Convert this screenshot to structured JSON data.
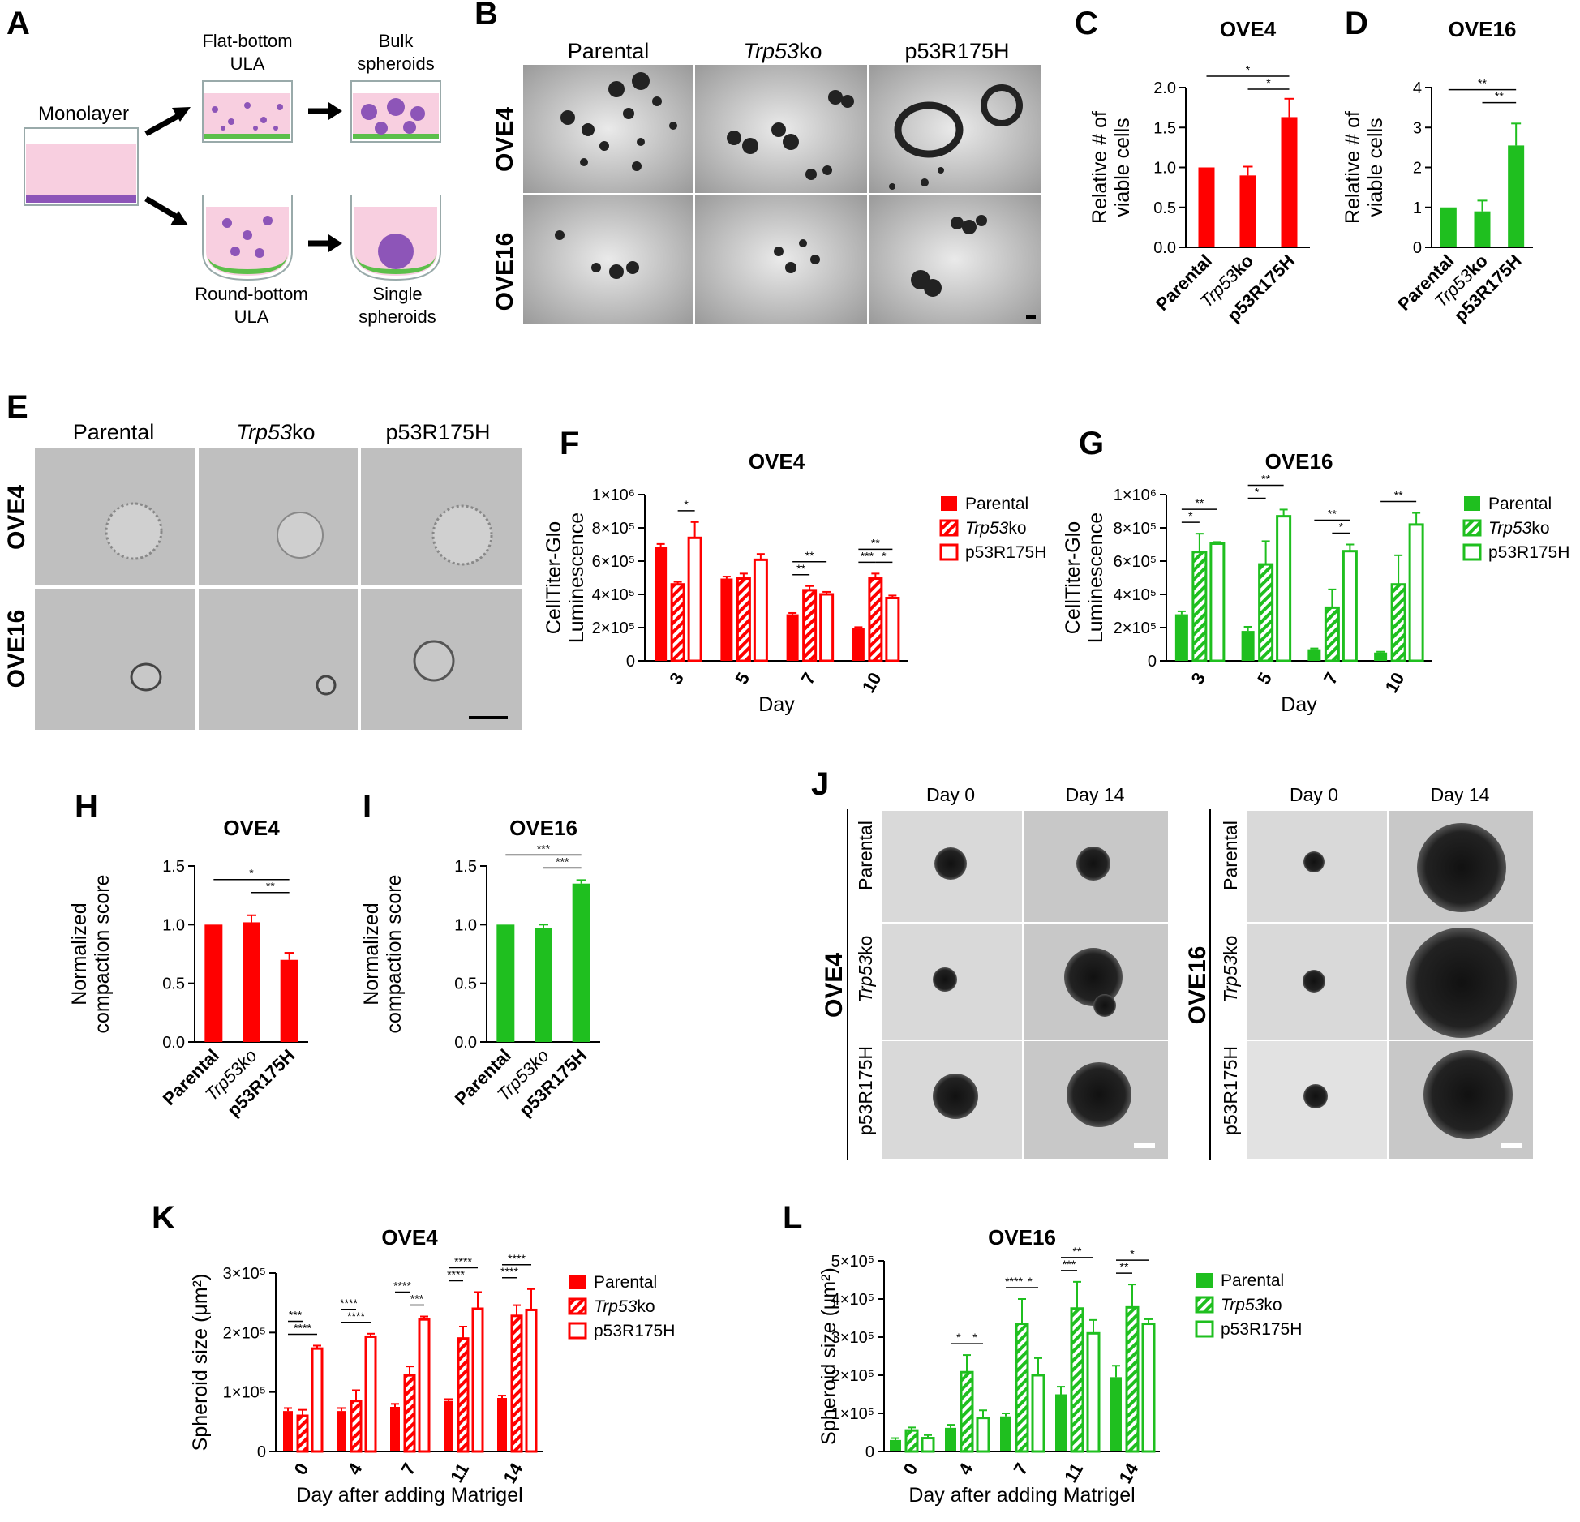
{
  "colors": {
    "red": "#ff0000",
    "green": "#1fbf1f",
    "pink": "#f8cfe0",
    "purple": "#8d55b8",
    "medium_green": "#5cbf4a"
  },
  "panelA": {
    "letter": "A",
    "monolayer": "Monolayer",
    "flat_line1": "Flat-bottom",
    "flat_line2": "ULA",
    "bulk_line1": "Bulk",
    "bulk_line2": "spheroids",
    "round_line1": "Round-bottom",
    "round_line2": "ULA",
    "single_line1": "Single",
    "single_line2": "spheroids"
  },
  "panelB": {
    "letter": "B",
    "cols": [
      "Parental",
      "Trp53",
      "ko",
      "p53R175H"
    ],
    "rows": [
      "OVE4",
      "OVE16"
    ]
  },
  "panelE": {
    "letter": "E",
    "cols": [
      "Parental",
      "Trp53",
      "ko",
      "p53R175H"
    ],
    "rows": [
      "OVE4",
      "OVE16"
    ]
  },
  "panelJ": {
    "letter": "J",
    "days": [
      "Day 0",
      "Day 14"
    ],
    "rows": [
      "Parental",
      "Trp53",
      "ko",
      "p53R175H"
    ],
    "groups": [
      "OVE4",
      "OVE16"
    ]
  },
  "chart_data": [
    {
      "id": "C",
      "type": "bar",
      "title": "OVE4",
      "ylabel": "Relative # of viable cells",
      "ylabel_lines": [
        "Relative # of",
        "viable cells"
      ],
      "categories": [
        "Parental",
        "Trp53ko",
        "p53R175H"
      ],
      "values": [
        1.0,
        0.9,
        1.63
      ],
      "errors": [
        0,
        0.11,
        0.23
      ],
      "ylim": [
        0,
        2.0
      ],
      "yticks": [
        "0.0",
        "0.5",
        "1.0",
        "1.5",
        "2.0"
      ],
      "color": "#ff0000",
      "significance": [
        "*",
        "*"
      ]
    },
    {
      "id": "D",
      "type": "bar",
      "title": "OVE16",
      "ylabel": "Relative # of viable cells",
      "ylabel_lines": [
        "Relative # of",
        "viable cells"
      ],
      "categories": [
        "Parental",
        "Trp53ko",
        "p53R175H"
      ],
      "values": [
        1.0,
        0.9,
        2.55
      ],
      "errors": [
        0,
        0.27,
        0.55
      ],
      "ylim": [
        0,
        4
      ],
      "yticks": [
        "0",
        "1",
        "2",
        "3",
        "4"
      ],
      "color": "#1fbf1f",
      "significance": [
        "**",
        "**"
      ]
    },
    {
      "id": "F",
      "type": "bar",
      "title": "OVE4",
      "xlabel": "Day",
      "ylabel": "CellTiter-Glo Luminescence",
      "ylabel_lines": [
        "CellTiter-Glo",
        "Luminescence"
      ],
      "categories": [
        "3",
        "5",
        "7",
        "10"
      ],
      "ylim": [
        0,
        1000000
      ],
      "yticks": [
        "0",
        "2×10⁵",
        "4×10⁵",
        "6×10⁵",
        "8×10⁵",
        "1×10⁶"
      ],
      "series": [
        {
          "name": "Parental",
          "values": [
            685000,
            495000,
            280000,
            195000
          ],
          "errors": [
            18000,
            12000,
            8000,
            8000
          ]
        },
        {
          "name": "Trp53ko",
          "values": [
            460000,
            495000,
            425000,
            495000
          ],
          "errors": [
            15000,
            30000,
            25000,
            30000
          ]
        },
        {
          "name": "p53R175H",
          "values": [
            740000,
            608000,
            400000,
            378000
          ],
          "errors": [
            95000,
            35000,
            15000,
            15000
          ]
        }
      ],
      "color": "#ff0000",
      "significance": [
        "*",
        "**",
        "**",
        "**",
        "***",
        "*"
      ]
    },
    {
      "id": "G",
      "type": "bar",
      "title": "OVE16",
      "xlabel": "Day",
      "ylabel": "CellTiter-Glo Luminescence",
      "ylabel_lines": [
        "CellTiter-Glo",
        "Luminescence"
      ],
      "categories": [
        "3",
        "5",
        "7",
        "10"
      ],
      "ylim": [
        0,
        1000000
      ],
      "yticks": [
        "0",
        "2×10⁵",
        "4×10⁵",
        "6×10⁵",
        "8×10⁵",
        "1×10⁶"
      ],
      "series": [
        {
          "name": "Parental",
          "values": [
            280000,
            180000,
            70000,
            50000
          ],
          "errors": [
            18000,
            25000,
            5000,
            5000
          ]
        },
        {
          "name": "Trp53ko",
          "values": [
            655000,
            580000,
            320000,
            460000
          ],
          "errors": [
            110000,
            140000,
            110000,
            175000
          ]
        },
        {
          "name": "p53R175H",
          "values": [
            705000,
            870000,
            660000,
            820000
          ],
          "errors": [
            10000,
            40000,
            40000,
            70000
          ]
        }
      ],
      "color": "#1fbf1f",
      "significance": [
        "**",
        "*",
        "**",
        "*",
        "**",
        "*",
        "**"
      ]
    },
    {
      "id": "H",
      "type": "bar",
      "title": "OVE4",
      "ylabel": "Normalized compaction score",
      "ylabel_lines": [
        "Normalized",
        "compaction score"
      ],
      "categories": [
        "Parental",
        "Trp53ko",
        "p53R175H"
      ],
      "values": [
        1.0,
        1.02,
        0.7
      ],
      "errors": [
        0,
        0.06,
        0.06
      ],
      "ylim": [
        0,
        1.5
      ],
      "yticks": [
        "0.0",
        "0.5",
        "1.0",
        "1.5"
      ],
      "color": "#ff0000",
      "significance": [
        "*",
        "**"
      ]
    },
    {
      "id": "I",
      "type": "bar",
      "title": "OVE16",
      "ylabel": "Normalized compaction score",
      "ylabel_lines": [
        "Normalized",
        "compaction score"
      ],
      "categories": [
        "Parental",
        "Trp53ko",
        "p53R175H"
      ],
      "values": [
        1.0,
        0.97,
        1.35
      ],
      "errors": [
        0,
        0.03,
        0.03
      ],
      "ylim": [
        0,
        1.5
      ],
      "yticks": [
        "0.0",
        "0.5",
        "1.0",
        "1.5"
      ],
      "color": "#1fbf1f",
      "significance": [
        "***",
        "***"
      ]
    },
    {
      "id": "K",
      "type": "bar",
      "title": "OVE4",
      "xlabel": "Day after adding Matrigel",
      "ylabel": "Spheroid size (μm²)",
      "categories": [
        "0",
        "4",
        "7",
        "11",
        "14"
      ],
      "ylim": [
        0,
        300000
      ],
      "yticks": [
        "0",
        "1×10⁵",
        "2×10⁵",
        "3×10⁵"
      ],
      "series": [
        {
          "name": "Parental",
          "values": [
            68000,
            68000,
            75000,
            85000,
            90000
          ],
          "errors": [
            5000,
            5000,
            5000,
            3000,
            4000
          ]
        },
        {
          "name": "Trp53ko",
          "values": [
            60000,
            85000,
            128000,
            190000,
            228000
          ],
          "errors": [
            10000,
            18000,
            15000,
            20000,
            18000
          ]
        },
        {
          "name": "p53R175H",
          "values": [
            173000,
            193000,
            222000,
            240000,
            238000
          ],
          "errors": [
            5000,
            5000,
            5000,
            28000,
            35000
          ]
        }
      ],
      "color": "#ff0000",
      "significance": [
        "***",
        "****",
        "****",
        "****",
        "****",
        "***",
        "****",
        "****",
        "****",
        "****"
      ]
    },
    {
      "id": "L",
      "type": "bar",
      "title": "OVE16",
      "xlabel": "Day after adding Matrigel",
      "ylabel": "Spheroid size (μm²)",
      "categories": [
        "0",
        "4",
        "7",
        "11",
        "14"
      ],
      "ylim": [
        0,
        500000
      ],
      "yticks": [
        "0",
        "1×10⁵",
        "2×10⁵",
        "3×10⁵",
        "4×10⁵",
        "5×10⁵"
      ],
      "series": [
        {
          "name": "Parental",
          "values": [
            30000,
            62000,
            92000,
            150000,
            195000
          ],
          "errors": [
            5000,
            8000,
            8000,
            20000,
            30000
          ]
        },
        {
          "name": "Trp53ko",
          "values": [
            55000,
            208000,
            335000,
            375000,
            378000
          ],
          "errors": [
            8000,
            45000,
            65000,
            70000,
            60000
          ]
        },
        {
          "name": "p53R175H",
          "values": [
            35000,
            88000,
            200000,
            310000,
            335000
          ],
          "errors": [
            8000,
            20000,
            45000,
            35000,
            12000
          ]
        }
      ],
      "color": "#1fbf1f",
      "significance": [
        "*",
        "*",
        "****",
        "*",
        "***",
        "**",
        "**",
        "*"
      ]
    }
  ]
}
